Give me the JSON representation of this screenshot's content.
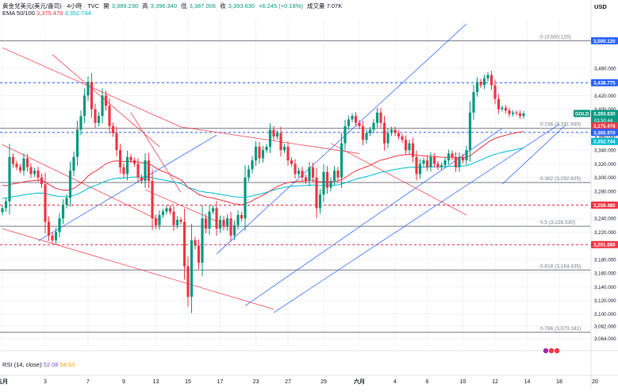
{
  "header": {
    "symbol": "黃金兌美元(美元/盎司) · 4小時 · TVC",
    "open_label": "開",
    "open": "3,389.230",
    "high_label": "高",
    "high": "3,396.340",
    "low_label": "低",
    "low": "3,387.006",
    "close_label": "收",
    "close": "3,393.630",
    "change": "+6.245 (+0.18%)",
    "volume": "成交量 7.07K"
  },
  "ema": {
    "label": "EMA 50/100",
    "v1": "3,375.478",
    "v2": "3,352.744"
  },
  "rsi": {
    "label": "RSI (14, close)",
    "v1": "52.08",
    "v2": "54.63"
  },
  "currency": "USD",
  "chart_data": {
    "type": "candlestick",
    "timeframe": "4h",
    "x_labels": [
      {
        "label": "五月",
        "bar": 0
      },
      {
        "label": "3",
        "bar": 12
      },
      {
        "label": "7",
        "bar": 24
      },
      {
        "label": "9",
        "bar": 34
      },
      {
        "label": "13",
        "bar": 43
      },
      {
        "label": "15",
        "bar": 52
      },
      {
        "label": "17",
        "bar": 61
      },
      {
        "label": "23",
        "bar": 71
      },
      {
        "label": "27",
        "bar": 80
      },
      {
        "label": "29",
        "bar": 90
      },
      {
        "label": "六月",
        "bar": 100
      },
      {
        "label": "4",
        "bar": 110
      },
      {
        "label": "6",
        "bar": 119
      },
      {
        "label": "10",
        "bar": 129
      },
      {
        "label": "12",
        "bar": 138
      },
      {
        "label": "14",
        "bar": 147
      },
      {
        "label": "18",
        "bar": 156
      },
      {
        "label": "20",
        "bar": 166
      }
    ],
    "ylim": [
      3052,
      3532
    ],
    "y_ticks": [
      3064,
      3082,
      3100,
      3120,
      3140,
      3160,
      3180,
      3200,
      3220,
      3240,
      3260,
      3280,
      3300,
      3320,
      3340,
      3360,
      3380,
      3400,
      3420,
      3440,
      3460
    ],
    "closes": [
      3255,
      3265,
      3330,
      3320,
      3315,
      3310,
      3328,
      3315,
      3305,
      3310,
      3300,
      3290,
      3235,
      3215,
      3208,
      3220,
      3240,
      3260,
      3270,
      3310,
      3330,
      3370,
      3390,
      3420,
      3440,
      3400,
      3380,
      3390,
      3420,
      3405,
      3375,
      3365,
      3340,
      3315,
      3305,
      3330,
      3325,
      3320,
      3300,
      3295,
      3325,
      3295,
      3240,
      3230,
      3245,
      3250,
      3255,
      3250,
      3230,
      3238,
      3235,
      3170,
      3125,
      3208,
      3200,
      3175,
      3240,
      3225,
      3250,
      3255,
      3225,
      3238,
      3228,
      3240,
      3215,
      3230,
      3245,
      3240,
      3300,
      3312,
      3325,
      3345,
      3328,
      3340,
      3345,
      3370,
      3360,
      3365,
      3340,
      3345,
      3325,
      3320,
      3305,
      3310,
      3300,
      3295,
      3315,
      3300,
      3255,
      3275,
      3308,
      3285,
      3295,
      3310,
      3300,
      3350,
      3375,
      3385,
      3390,
      3380,
      3375,
      3355,
      3365,
      3370,
      3380,
      3395,
      3380,
      3350,
      3365,
      3370,
      3365,
      3360,
      3355,
      3340,
      3350,
      3330,
      3305,
      3320,
      3325,
      3315,
      3330,
      3320,
      3315,
      3318,
      3325,
      3335,
      3330,
      3315,
      3330,
      3325,
      3340,
      3395,
      3425,
      3440,
      3435,
      3445,
      3450,
      3435,
      3415,
      3400,
      3402,
      3398,
      3393,
      3395,
      3394,
      3390,
      3393.63
    ],
    "ema_fast": {
      "name": "EMA 50",
      "last": 3375.478,
      "color": "#f23645"
    },
    "ema_slow": {
      "name": "EMA 100",
      "last": 3352.744,
      "color": "#00bcd4"
    },
    "fib_levels": [
      {
        "ratio": "0",
        "value": 3500.12,
        "label": "0 (3,500.120)"
      },
      {
        "ratio": "0.236",
        "value": 3371.93,
        "label": "0.236 (3,371.930)"
      },
      {
        "ratio": "0.382",
        "value": 3292.625,
        "label": "0.382 (3,292.625)"
      },
      {
        "ratio": "0.5",
        "value": 3228.53,
        "label": "0.5 (3,228.530)"
      },
      {
        "ratio": "0.618",
        "value": 3164.435,
        "label": "0.618 (3,164.435)"
      },
      {
        "ratio": "0.786",
        "value": 3073.181,
        "label": "0.786 (3,073.181)"
      }
    ],
    "horizontal_lines": [
      {
        "value": 3438.775,
        "label": "3,438.775",
        "color": "#2962ff",
        "style": "dashed"
      },
      {
        "value": 3365.97,
        "label": "3,365.970",
        "color": "#2962ff",
        "style": "dashed"
      },
      {
        "value": 3259.48,
        "label": "3,259.480",
        "color": "#f23645",
        "style": "dashed"
      },
      {
        "value": 3201.68,
        "label": "3,201.680",
        "color": "#f23645",
        "style": "dashed"
      }
    ],
    "price_tags": [
      {
        "value": 3500.12,
        "label": "3,500.120",
        "color": "#2962ff"
      },
      {
        "value": 3438.775,
        "label": "3,438.775",
        "color": "#2962ff"
      },
      {
        "value": 3393.63,
        "label": "3,393.630",
        "sub": "03:50:44",
        "badge": "GOLD",
        "color": "#089981"
      },
      {
        "value": 3375.478,
        "label": "3,375.478",
        "color": "#f23645"
      },
      {
        "value": 3365.97,
        "label": "3,365.970",
        "color": "#2962ff"
      },
      {
        "value": 3352.744,
        "label": "3,352.744",
        "color": "#00bcd4"
      },
      {
        "value": 3259.48,
        "label": "3,259.480",
        "color": "#f23645"
      },
      {
        "value": 3201.68,
        "label": "3,201.680",
        "color": "#f23645"
      }
    ],
    "trendlines": [
      {
        "color": "#f23645",
        "points": [
          [
            0,
            3490
          ],
          [
            50,
            3374
          ]
        ]
      },
      {
        "color": "#f23645",
        "points": [
          [
            50,
            3374
          ],
          [
            100,
            3335
          ]
        ]
      },
      {
        "color": "#f23645",
        "points": [
          [
            0,
            3348
          ],
          [
            44,
            3237
          ]
        ]
      },
      {
        "color": "#f23645",
        "points": [
          [
            0,
            3225
          ],
          [
            76,
            3107
          ]
        ]
      },
      {
        "color": "#f23645",
        "points": [
          [
            14,
            3480
          ],
          [
            44,
            3345
          ]
        ]
      },
      {
        "color": "#f23645",
        "points": [
          [
            36,
            3395
          ],
          [
            50,
            3278
          ]
        ]
      },
      {
        "color": "#f23645",
        "points": [
          [
            40,
            3282
          ],
          [
            60,
            3236
          ]
        ]
      },
      {
        "color": "#f23645",
        "points": [
          [
            92,
            3350
          ],
          [
            130,
            3245
          ]
        ]
      },
      {
        "color": "#2962ff",
        "points": [
          [
            10,
            3207
          ],
          [
            60,
            3362
          ]
        ]
      },
      {
        "color": "#2962ff",
        "points": [
          [
            60,
            3188
          ],
          [
            130,
            3525
          ]
        ]
      },
      {
        "color": "#2962ff",
        "points": [
          [
            68,
            3112
          ],
          [
            140,
            3372
          ]
        ]
      },
      {
        "color": "#2962ff",
        "points": [
          [
            76,
            3102
          ],
          [
            156,
            3378
          ]
        ]
      },
      {
        "color": "#2962ff",
        "points": [
          [
            140,
            3290
          ],
          [
            158,
            3378
          ]
        ]
      }
    ]
  }
}
